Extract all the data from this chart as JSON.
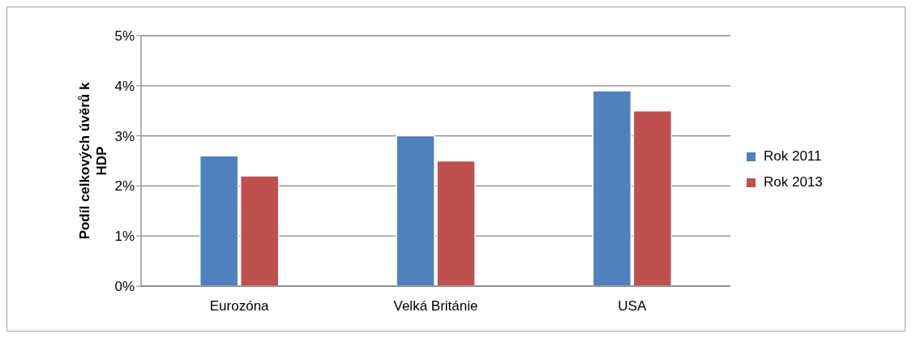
{
  "chart_data": {
    "type": "bar",
    "ylabel": "Podíl celkových úvěrů k HDP",
    "categories": [
      "Eurozóna",
      "Velká Británie",
      "USA"
    ],
    "series": [
      {
        "name": "Rok 2011",
        "color": "#4f81bd",
        "values": [
          2.6,
          3.0,
          3.9
        ]
      },
      {
        "name": "Rok 2013",
        "color": "#c0504d",
        "values": [
          2.2,
          2.5,
          3.5
        ]
      }
    ],
    "ylim": [
      0,
      5
    ],
    "yticks": [
      {
        "value": 0,
        "label": "0%"
      },
      {
        "value": 1,
        "label": "1%"
      },
      {
        "value": 2,
        "label": "2%"
      },
      {
        "value": 3,
        "label": "3%"
      },
      {
        "value": 4,
        "label": "4%"
      },
      {
        "value": 5,
        "label": "5%"
      }
    ],
    "grid": "y",
    "legend": "right"
  }
}
